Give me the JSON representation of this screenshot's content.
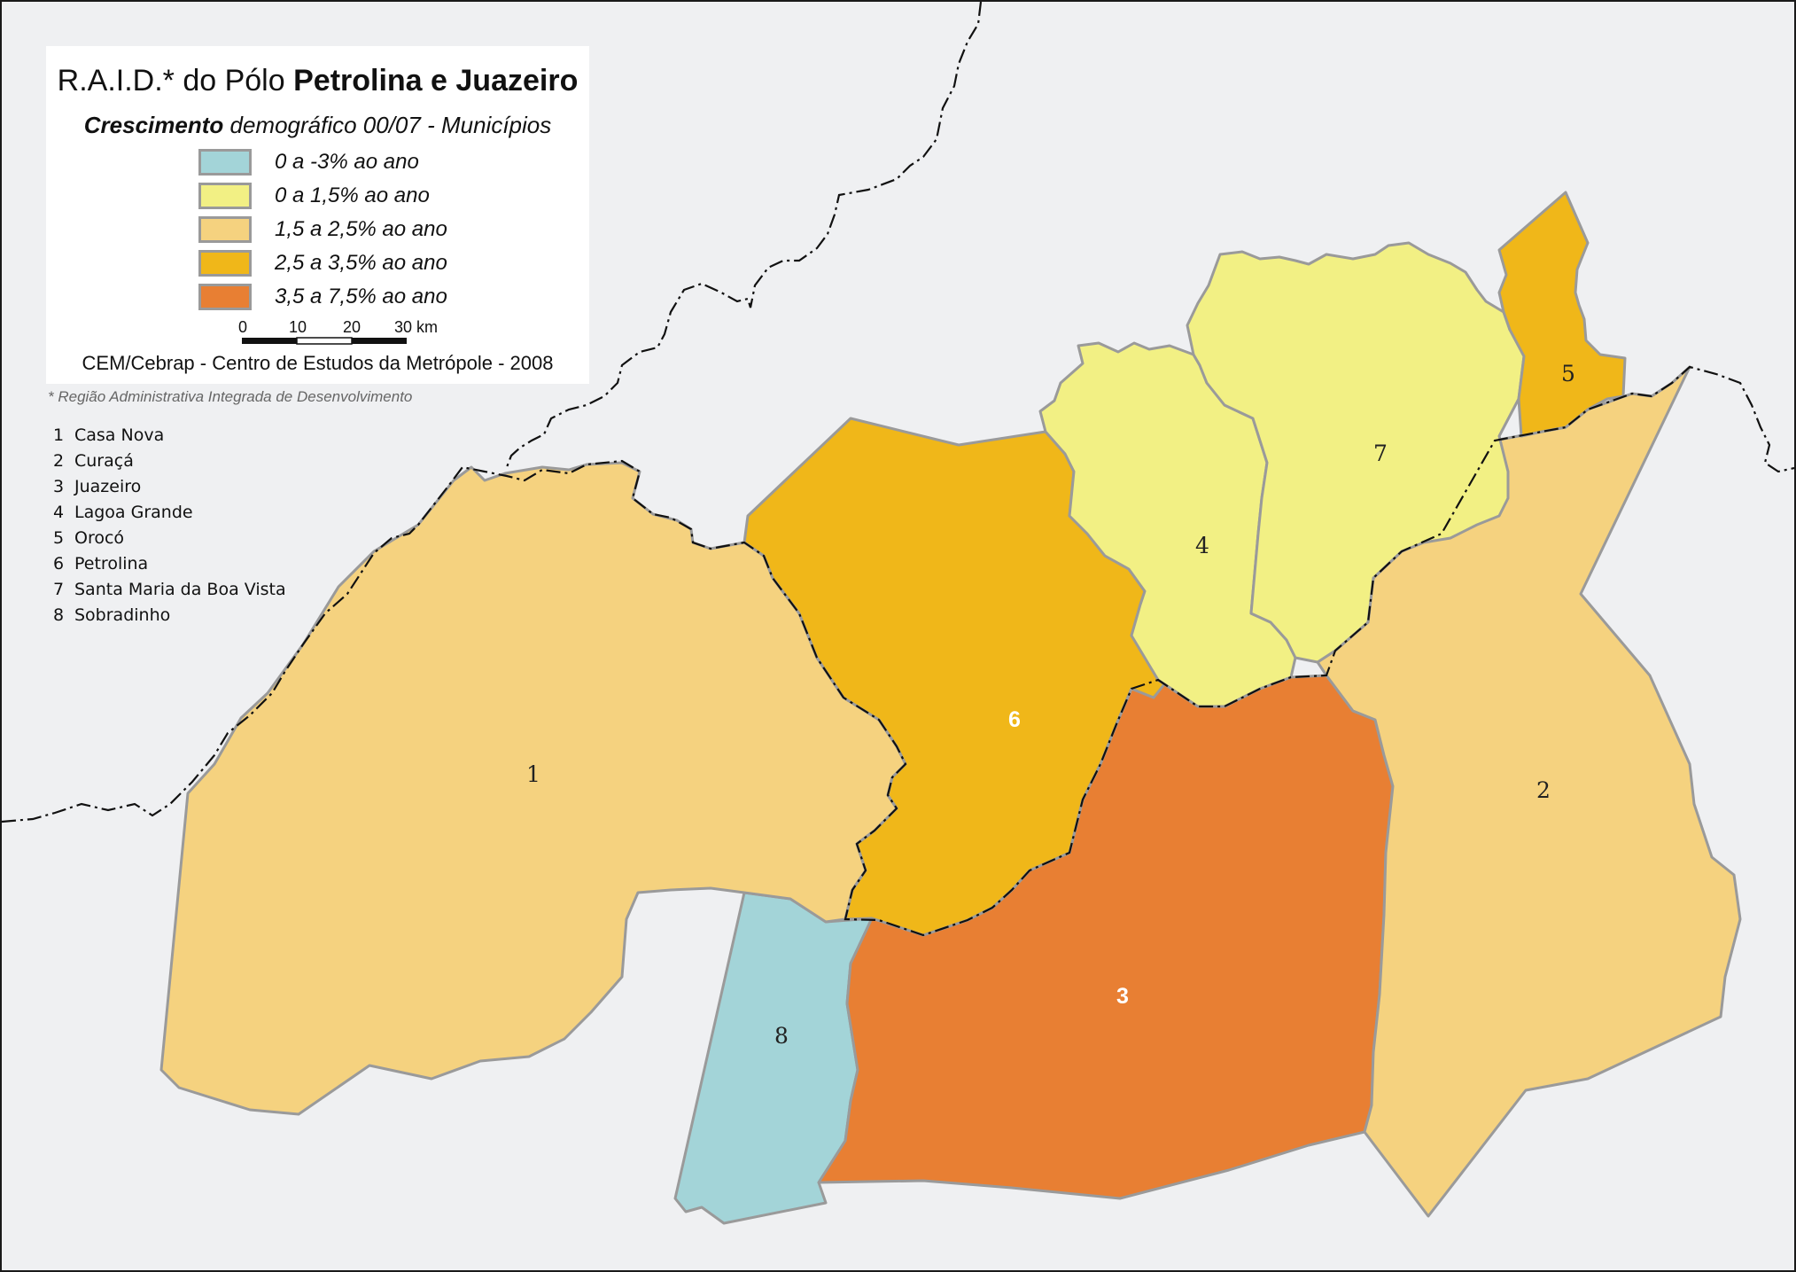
{
  "legend": {
    "title_regular": "R.A.I.D.* do Pólo ",
    "title_bold": "Petrolina e Juazeiro",
    "subtitle_bold": "Crescimento",
    "subtitle_regular": " demográfico 00/07 - Municípios",
    "classes": [
      {
        "label": "0 a -3% ao ano",
        "color": "#a3d4d8"
      },
      {
        "label": "0 a 1,5% ao ano",
        "color": "#f2f084"
      },
      {
        "label": "1,5 a 2,5% ao ano",
        "color": "#f5d27f"
      },
      {
        "label": "2,5 a 3,5% ao ano",
        "color": "#f0b719"
      },
      {
        "label": "3,5 a 7,5% ao ano",
        "color": "#e87f33"
      }
    ],
    "scale": {
      "ticks": [
        "0",
        "10",
        "20",
        "30 km"
      ]
    },
    "credit": "CEM/Cebrap - Centro de Estudos da Metrópole - 2008"
  },
  "footnote": "* Região Administrativa Integrada de Desenvolvimento",
  "municipalities": [
    {
      "num": "1",
      "name": "Casa Nova",
      "class": 2
    },
    {
      "num": "2",
      "name": "Curaçá",
      "class": 2
    },
    {
      "num": "3",
      "name": "Juazeiro",
      "class": 4
    },
    {
      "num": "4",
      "name": "Lagoa Grande",
      "class": 1
    },
    {
      "num": "5",
      "name": "Orocó",
      "class": 3
    },
    {
      "num": "6",
      "name": "Petrolina",
      "class": 3
    },
    {
      "num": "7",
      "name": "Santa Maria da Boa Vista",
      "class": 1
    },
    {
      "num": "8",
      "name": "Sobradinho",
      "class": 0
    }
  ]
}
